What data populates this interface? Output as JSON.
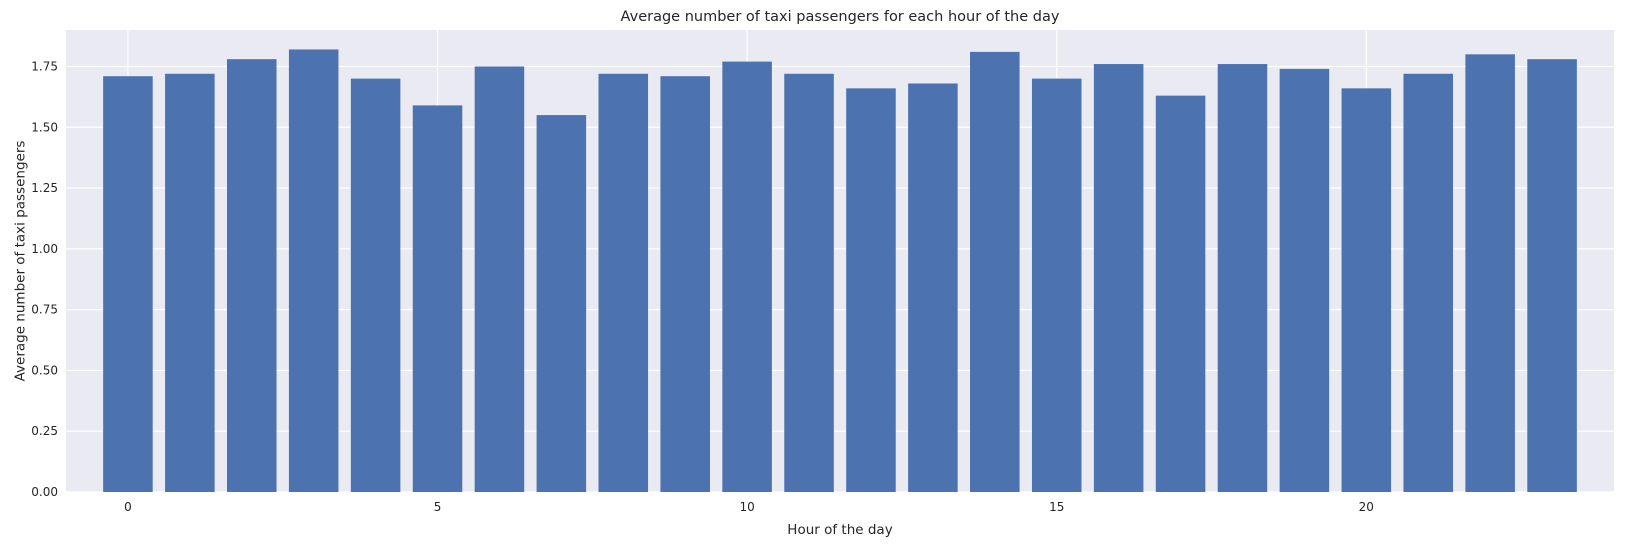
{
  "chart_data": {
    "type": "bar",
    "title": "Average number of taxi passengers for each hour of the day",
    "xlabel": "Hour of the day",
    "ylabel": "Average number of taxi passengers",
    "x": [
      0,
      1,
      2,
      3,
      4,
      5,
      6,
      7,
      8,
      9,
      10,
      11,
      12,
      13,
      14,
      15,
      16,
      17,
      18,
      19,
      20,
      21,
      22,
      23
    ],
    "values": [
      1.71,
      1.72,
      1.78,
      1.82,
      1.7,
      1.59,
      1.75,
      1.55,
      1.72,
      1.71,
      1.77,
      1.72,
      1.66,
      1.68,
      1.81,
      1.7,
      1.76,
      1.63,
      1.76,
      1.74,
      1.66,
      1.72,
      1.8,
      1.78
    ],
    "xlim": [
      -1.0,
      24.0
    ],
    "ylim": [
      0,
      1.9
    ],
    "x_ticks": [
      0,
      5,
      10,
      15,
      20
    ],
    "x_tick_labels": [
      "0",
      "5",
      "10",
      "15",
      "20"
    ],
    "y_ticks": [
      0,
      0.25,
      0.5,
      0.75,
      1.0,
      1.25,
      1.5,
      1.75
    ],
    "y_tick_labels": [
      "0.00",
      "0.25",
      "0.50",
      "0.75",
      "1.00",
      "1.25",
      "1.50",
      "1.75"
    ],
    "grid": true,
    "bar_color": "#4c72b0",
    "background_color": "#eaeaf2"
  }
}
